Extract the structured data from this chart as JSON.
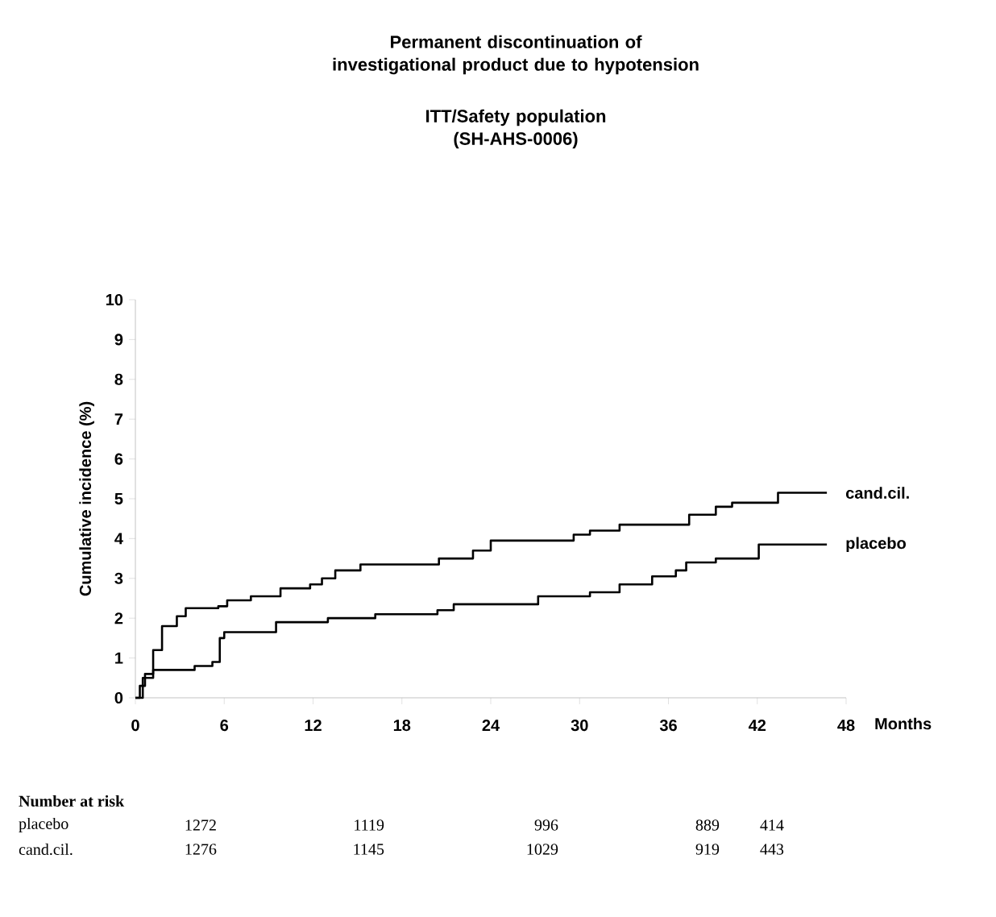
{
  "chart_data": {
    "type": "step",
    "title": "Permanent discontinuation of investigational product due to hypotension",
    "subtitle": "ITT/Safety population (SH-AHS-0006)",
    "xlabel": "Months",
    "ylabel": "Cumulative incidence (%)",
    "xlim": [
      0,
      48
    ],
    "xticks": [
      0,
      6,
      12,
      18,
      24,
      30,
      36,
      42,
      48
    ],
    "ylim": [
      0,
      10
    ],
    "yticks": [
      0,
      1,
      2,
      3,
      4,
      5,
      6,
      7,
      8,
      9,
      10
    ],
    "grid": false,
    "legend": false,
    "series": [
      {
        "name": "cand.cil.",
        "color": "#000000",
        "x": [
          0,
          0.3,
          0.65,
          1.2,
          1.8,
          2.8,
          3.4,
          5.6,
          6.2,
          7.8,
          9.8,
          11.8,
          12.6,
          13.5,
          15.2,
          20.5,
          22.8,
          24.0,
          29.6,
          30.7,
          32.7,
          37.4,
          39.2,
          40.3,
          43.4,
          46.7
        ],
        "values": [
          0,
          0.3,
          0.6,
          1.2,
          1.8,
          2.05,
          2.25,
          2.3,
          2.45,
          2.55,
          2.75,
          2.85,
          3.0,
          3.2,
          3.35,
          3.5,
          3.7,
          3.95,
          4.1,
          4.2,
          4.35,
          4.6,
          4.8,
          4.9,
          5.15,
          5.15
        ]
      },
      {
        "name": "placebo",
        "color": "#000000",
        "x": [
          0,
          0.5,
          1.2,
          4,
          5.2,
          5.7,
          6,
          9.5,
          13,
          16.2,
          20.4,
          21.5,
          27.2,
          30.7,
          32.7,
          34.9,
          36.5,
          37.2,
          39.2,
          42.1,
          46.7
        ],
        "values": [
          0,
          0.5,
          0.7,
          0.8,
          0.9,
          1.5,
          1.65,
          1.9,
          2.0,
          2.1,
          2.2,
          2.35,
          2.55,
          2.65,
          2.85,
          3.05,
          3.2,
          3.4,
          3.5,
          3.85,
          3.85
        ]
      }
    ],
    "annotations": [
      "Number at risk",
      "placebo",
      "1272",
      "1119",
      "996",
      "889",
      "414",
      "cand.cil.",
      "1276",
      "1145",
      "1029",
      "919",
      "443"
    ]
  }
}
